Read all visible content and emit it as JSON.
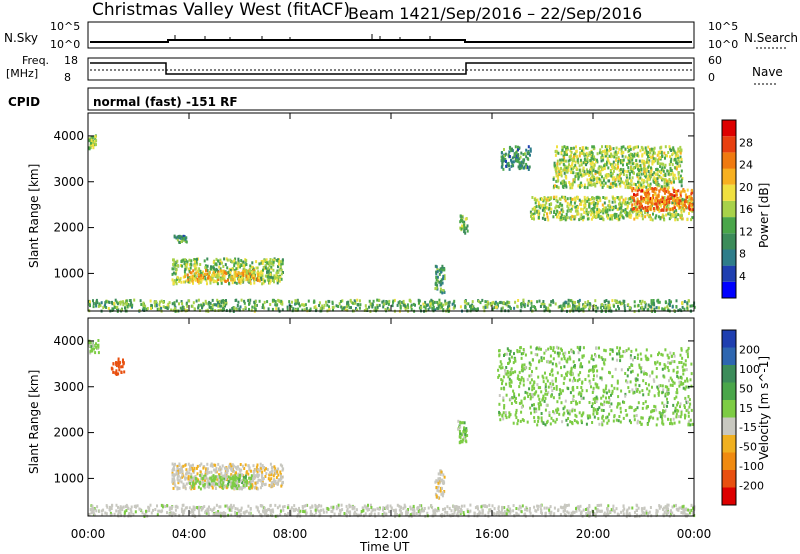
{
  "header": {
    "station": "Christmas Valley West (fitACF)",
    "beam": "Beam 14",
    "date_range": "21/Sep/2016 – 22/Sep/2016"
  },
  "top_panels": {
    "nsky_label": "N.Sky",
    "nsky_ticks": [
      "10^5",
      "10^0"
    ],
    "nsearch_label": "N.Search",
    "nsearch_ticks": [
      "10^5",
      "10^0"
    ],
    "freq_label_1": "Freq.",
    "freq_label_2": "[MHz]",
    "freq_ticks": [
      "18",
      "8"
    ],
    "nave_label": "Nave",
    "nave_ticks": [
      "60",
      "0"
    ],
    "cpid_label": "CPID",
    "cpid_text": "normal (fast) -151 RF"
  },
  "colors": {
    "power_scale": [
      "#0000ff",
      "#1f3fb0",
      "#2e7d8a",
      "#3c8c5a",
      "#4aa64a",
      "#a8d24a",
      "#f0e040",
      "#f7b020",
      "#f07a10",
      "#e84010",
      "#dd0000"
    ],
    "velocity_scale": [
      "#1f3fb0",
      "#2e66b0",
      "#3c8c5a",
      "#4aa64a",
      "#7dcc44",
      "#c8c8c0",
      "#f0b020",
      "#f08a10",
      "#e85010",
      "#dd0000"
    ]
  },
  "chart_data": [
    {
      "type": "heatmap",
      "name": "Power",
      "ylabel": "Slant Range [km]",
      "yticks": [
        "1000",
        "2000",
        "3000",
        "4000"
      ],
      "ylim": [
        180,
        4500
      ],
      "xlim": [
        0,
        24
      ],
      "colorbar_label": "Power [dB]",
      "colorbar_ticks": [
        "4",
        "8",
        "12",
        "16",
        "20",
        "24",
        "28"
      ],
      "blobs": [
        {
          "t0": 0.0,
          "t1": 0.3,
          "r0": 3750,
          "r1": 4050,
          "v": 14
        },
        {
          "t0": 3.3,
          "t1": 7.7,
          "r0": 800,
          "r1": 1350,
          "v": 14
        },
        {
          "t0": 3.8,
          "t1": 6.8,
          "r0": 850,
          "r1": 1100,
          "v": 20
        },
        {
          "t0": 3.3,
          "t1": 3.9,
          "r0": 1700,
          "r1": 1850,
          "v": 9
        },
        {
          "t0": 13.7,
          "t1": 14.1,
          "r0": 600,
          "r1": 1200,
          "v": 10
        },
        {
          "t0": 14.7,
          "t1": 15.0,
          "r0": 1800,
          "r1": 2300,
          "v": 12
        },
        {
          "t0": 16.3,
          "t1": 17.5,
          "r0": 3300,
          "r1": 3800,
          "v": 9
        },
        {
          "t0": 17.5,
          "t1": 23.9,
          "r0": 2200,
          "r1": 2700,
          "v": 15
        },
        {
          "t0": 21.5,
          "t1": 23.9,
          "r0": 2400,
          "r1": 2900,
          "v": 24
        },
        {
          "t0": 18.4,
          "t1": 23.5,
          "r0": 2900,
          "r1": 3800,
          "v": 15
        },
        {
          "t0": 0.0,
          "t1": 24.0,
          "r0": 200,
          "r1": 450,
          "v": 12
        }
      ]
    },
    {
      "type": "heatmap",
      "name": "Velocity",
      "ylabel": "Slant Range [km]",
      "yticks": [
        "1000",
        "2000",
        "3000",
        "4000"
      ],
      "ylim": [
        180,
        4500
      ],
      "xlim": [
        0,
        24
      ],
      "colorbar_label": "Velocity [m s^-1]",
      "colorbar_ticks": [
        "200",
        "100",
        "50",
        "15",
        "-15",
        "-50",
        "-100",
        "-200"
      ],
      "xlabel": "Time UT",
      "xticks": [
        "00:00",
        "04:00",
        "08:00",
        "12:00",
        "16:00",
        "20:00",
        "00:00"
      ],
      "blobs": [
        {
          "t0": 0.0,
          "t1": 0.4,
          "r0": 3750,
          "r1": 4050,
          "v": 0
        },
        {
          "t0": 0.9,
          "t1": 1.4,
          "r0": 3300,
          "r1": 3650,
          "v": -250
        },
        {
          "t0": 3.3,
          "t1": 7.7,
          "r0": 800,
          "r1": 1350,
          "v": -40
        },
        {
          "t0": 4.0,
          "t1": 6.5,
          "r0": 800,
          "r1": 1100,
          "v": 0
        },
        {
          "t0": 13.7,
          "t1": 14.1,
          "r0": 600,
          "r1": 1200,
          "v": -40
        },
        {
          "t0": 14.6,
          "t1": 15.0,
          "r0": 1800,
          "r1": 2300,
          "v": 0
        },
        {
          "t0": 16.2,
          "t1": 23.9,
          "r0": 2200,
          "r1": 3900,
          "v": 0
        },
        {
          "t0": 0.0,
          "t1": 24.0,
          "r0": 200,
          "r1": 450,
          "v": -30
        }
      ]
    }
  ]
}
